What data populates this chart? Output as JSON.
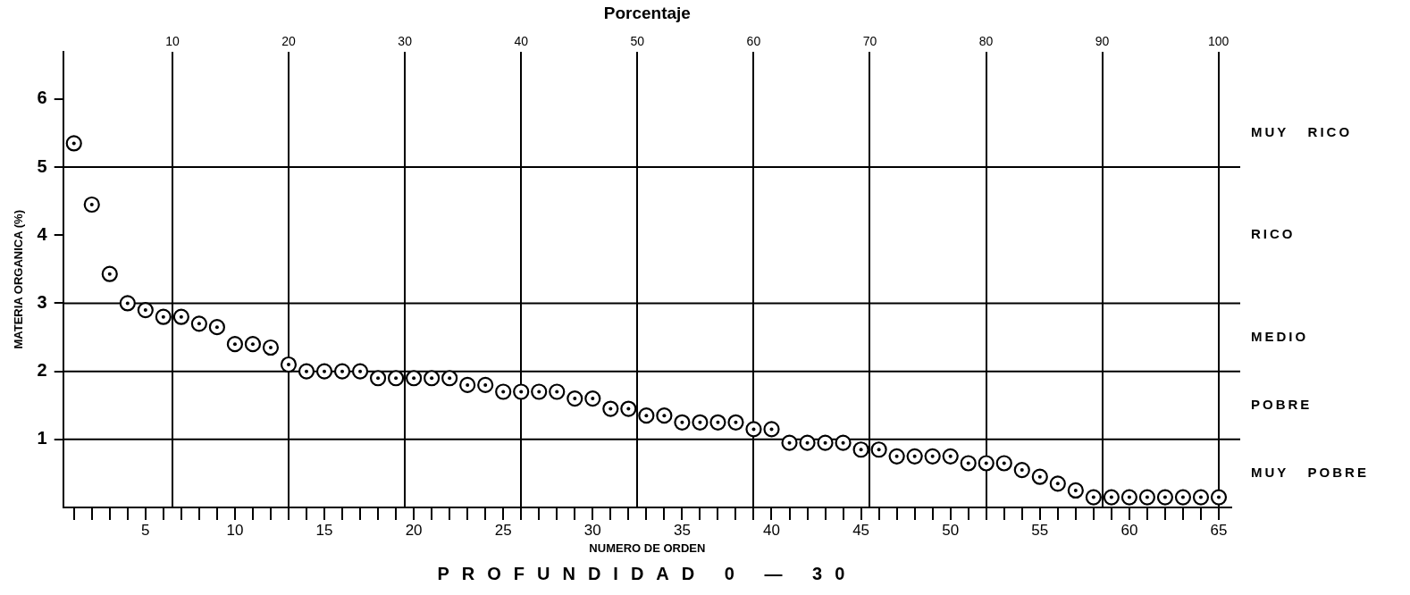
{
  "chart_data": {
    "type": "scatter",
    "xlabel": "NUMERO DE ORDEN",
    "ylabel": "MATERIA ORGANICA (%)",
    "x2label": "Porcentaje",
    "annotations": [
      "PROFUNDIDAD 0 — 30",
      "MUY   RICO",
      "RICO",
      "MEDIO",
      "POBRE",
      "MUY   POBRE"
    ],
    "x": [
      1,
      2,
      3,
      4,
      5,
      6,
      7,
      8,
      9,
      10,
      11,
      12,
      13,
      14,
      15,
      16,
      17,
      18,
      19,
      20,
      21,
      22,
      23,
      24,
      25,
      26,
      27,
      28,
      29,
      30,
      31,
      32,
      33,
      34,
      35,
      36,
      37,
      38,
      39,
      40,
      41,
      42,
      43,
      44,
      45,
      46,
      47,
      48,
      49,
      50,
      51,
      52,
      53,
      54,
      55,
      56,
      57,
      58,
      59,
      60,
      61,
      62,
      63,
      64,
      65
    ],
    "series": [
      {
        "color": "#000000",
        "values": [
          5.35,
          4.45,
          3.43,
          3.0,
          2.9,
          2.8,
          2.8,
          2.7,
          2.65,
          2.4,
          2.4,
          2.35,
          2.1,
          2.0,
          2.0,
          2.0,
          2.0,
          1.9,
          1.9,
          1.9,
          1.9,
          1.9,
          1.8,
          1.8,
          1.7,
          1.7,
          1.7,
          1.7,
          1.6,
          1.6,
          1.45,
          1.45,
          1.35,
          1.35,
          1.25,
          1.25,
          1.25,
          1.25,
          1.15,
          1.15,
          0.95,
          0.95,
          0.95,
          0.95,
          0.85,
          0.85,
          0.75,
          0.75,
          0.75,
          0.75,
          0.65,
          0.65,
          0.65,
          0.55,
          0.45,
          0.35,
          0.25,
          0.15,
          0.15,
          0.15,
          0.15,
          0.15,
          0.15,
          0.15,
          0.15
        ]
      }
    ],
    "marker": "circle",
    "xlim": [
      0.4,
      65.7
    ],
    "xticks": [
      {
        "value": 1,
        "label": null
      },
      {
        "value": 2,
        "label": null
      },
      {
        "value": 3,
        "label": null
      },
      {
        "value": 4,
        "label": null
      },
      5,
      {
        "value": 6,
        "label": null
      },
      {
        "value": 7,
        "label": null
      },
      {
        "value": 8,
        "label": null
      },
      {
        "value": 9,
        "label": null
      },
      10,
      {
        "value": 11,
        "label": null
      },
      {
        "value": 12,
        "label": null
      },
      {
        "value": 13,
        "label": null
      },
      {
        "value": 14,
        "label": null
      },
      15,
      {
        "value": 16,
        "label": null
      },
      {
        "value": 17,
        "label": null
      },
      {
        "value": 18,
        "label": null
      },
      {
        "value": 19,
        "label": null
      },
      20,
      {
        "value": 21,
        "label": null
      },
      {
        "value": 22,
        "label": null
      },
      {
        "value": 23,
        "label": null
      },
      {
        "value": 24,
        "label": null
      },
      25,
      {
        "value": 26,
        "label": null
      },
      {
        "value": 27,
        "label": null
      },
      {
        "value": 28,
        "label": null
      },
      {
        "value": 29,
        "label": null
      },
      30,
      {
        "value": 31,
        "label": null
      },
      {
        "value": 32,
        "label": null
      },
      {
        "value": 33,
        "label": null
      },
      {
        "value": 34,
        "label": null
      },
      35,
      {
        "value": 36,
        "label": null
      },
      {
        "value": 37,
        "label": null
      },
      {
        "value": 38,
        "label": null
      },
      {
        "value": 39,
        "label": null
      },
      40,
      {
        "value": 41,
        "label": null
      },
      {
        "value": 42,
        "label": null
      },
      {
        "value": 43,
        "label": null
      },
      {
        "value": 44,
        "label": null
      },
      45,
      {
        "value": 46,
        "label": null
      },
      {
        "value": 47,
        "label": null
      },
      {
        "value": 48,
        "label": null
      },
      {
        "value": 49,
        "label": null
      },
      50,
      {
        "value": 51,
        "label": null
      },
      {
        "value": 52,
        "label": null
      },
      {
        "value": 53,
        "label": null
      },
      {
        "value": 54,
        "label": null
      },
      55,
      {
        "value": 56,
        "label": null
      },
      {
        "value": 57,
        "label": null
      },
      {
        "value": 58,
        "label": null
      },
      {
        "value": 59,
        "label": null
      },
      60,
      {
        "value": 61,
        "label": null
      },
      {
        "value": 62,
        "label": null
      },
      {
        "value": 63,
        "label": null
      },
      {
        "value": 64,
        "label": null
      },
      65
    ],
    "x2lim": [
      0.6,
      101.1
    ],
    "x2ticks": [
      10,
      20,
      30,
      40,
      50,
      60,
      70,
      80,
      90,
      100
    ],
    "ylim": [
      0,
      6.7
    ],
    "yticks": [
      1,
      2,
      3,
      4,
      5,
      6
    ],
    "grid": "x",
    "ref_lines": [
      {
        "axis": "y",
        "value": 5
      },
      {
        "axis": "y",
        "value": 3
      },
      {
        "axis": "y",
        "value": 2
      },
      {
        "axis": "y",
        "value": 1
      }
    ],
    "legend": false
  }
}
